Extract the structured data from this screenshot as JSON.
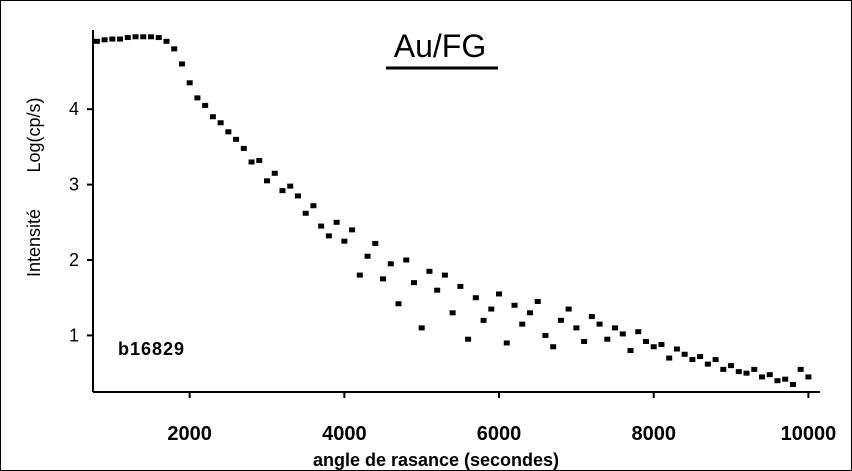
{
  "chart_data": {
    "type": "scatter",
    "title": "Au/FG",
    "xlabel": "angle de rasance (secondes)",
    "ylabel_left": "Intensité",
    "ylabel_right": "Log(cp/s)",
    "annotation": "b16829",
    "xlim": [
      750,
      10150
    ],
    "ylim": [
      0.25,
      5.05
    ],
    "xticks": [
      2000,
      4000,
      6000,
      8000,
      10000
    ],
    "yticks": [
      1,
      2,
      3,
      4
    ],
    "xtick_labels": [
      "2000",
      "4000",
      "6000",
      "8000",
      "10000"
    ],
    "ytick_labels": [
      "1",
      "2",
      "3",
      "4"
    ],
    "grid": false,
    "series": [
      {
        "color": "#000000",
        "marker": "square",
        "points": [
          [
            800,
            4.9
          ],
          [
            900,
            4.92
          ],
          [
            1000,
            4.93
          ],
          [
            1100,
            4.93
          ],
          [
            1200,
            4.95
          ],
          [
            1300,
            4.96
          ],
          [
            1400,
            4.96
          ],
          [
            1500,
            4.96
          ],
          [
            1600,
            4.95
          ],
          [
            1700,
            4.9
          ],
          [
            1800,
            4.8
          ],
          [
            1900,
            4.6
          ],
          [
            2000,
            4.35
          ],
          [
            2100,
            4.15
          ],
          [
            2200,
            4.05
          ],
          [
            2300,
            3.9
          ],
          [
            2400,
            3.82
          ],
          [
            2500,
            3.7
          ],
          [
            2600,
            3.6
          ],
          [
            2700,
            3.48
          ],
          [
            2800,
            3.3
          ],
          [
            2900,
            3.32
          ],
          [
            3000,
            3.05
          ],
          [
            3100,
            3.15
          ],
          [
            3200,
            2.92
          ],
          [
            3300,
            2.98
          ],
          [
            3400,
            2.85
          ],
          [
            3500,
            2.62
          ],
          [
            3600,
            2.72
          ],
          [
            3700,
            2.45
          ],
          [
            3800,
            2.32
          ],
          [
            3900,
            2.5
          ],
          [
            4000,
            2.25
          ],
          [
            4100,
            2.4
          ],
          [
            4200,
            1.8
          ],
          [
            4300,
            2.05
          ],
          [
            4400,
            2.22
          ],
          [
            4500,
            1.75
          ],
          [
            4600,
            1.95
          ],
          [
            4700,
            1.42
          ],
          [
            4800,
            2.0
          ],
          [
            4900,
            1.7
          ],
          [
            5000,
            1.1
          ],
          [
            5100,
            1.85
          ],
          [
            5200,
            1.6
          ],
          [
            5300,
            1.8
          ],
          [
            5400,
            1.3
          ],
          [
            5500,
            1.65
          ],
          [
            5600,
            0.95
          ],
          [
            5700,
            1.5
          ],
          [
            5800,
            1.2
          ],
          [
            5900,
            1.35
          ],
          [
            6000,
            1.55
          ],
          [
            6100,
            0.9
          ],
          [
            6200,
            1.4
          ],
          [
            6300,
            1.15
          ],
          [
            6400,
            1.3
          ],
          [
            6500,
            1.45
          ],
          [
            6600,
            1.0
          ],
          [
            6700,
            0.85
          ],
          [
            6800,
            1.2
          ],
          [
            6900,
            1.35
          ],
          [
            7000,
            1.1
          ],
          [
            7100,
            0.92
          ],
          [
            7200,
            1.25
          ],
          [
            7300,
            1.15
          ],
          [
            7400,
            0.95
          ],
          [
            7500,
            1.1
          ],
          [
            7600,
            1.02
          ],
          [
            7700,
            0.8
          ],
          [
            7800,
            1.05
          ],
          [
            7900,
            0.92
          ],
          [
            8000,
            0.85
          ],
          [
            8100,
            0.88
          ],
          [
            8200,
            0.7
          ],
          [
            8300,
            0.82
          ],
          [
            8400,
            0.75
          ],
          [
            8500,
            0.68
          ],
          [
            8600,
            0.72
          ],
          [
            8700,
            0.62
          ],
          [
            8800,
            0.68
          ],
          [
            8900,
            0.55
          ],
          [
            9000,
            0.6
          ],
          [
            9100,
            0.52
          ],
          [
            9200,
            0.5
          ],
          [
            9300,
            0.55
          ],
          [
            9400,
            0.45
          ],
          [
            9500,
            0.48
          ],
          [
            9600,
            0.4
          ],
          [
            9700,
            0.42
          ],
          [
            9800,
            0.35
          ],
          [
            9900,
            0.55
          ],
          [
            10000,
            0.45
          ]
        ]
      }
    ]
  }
}
